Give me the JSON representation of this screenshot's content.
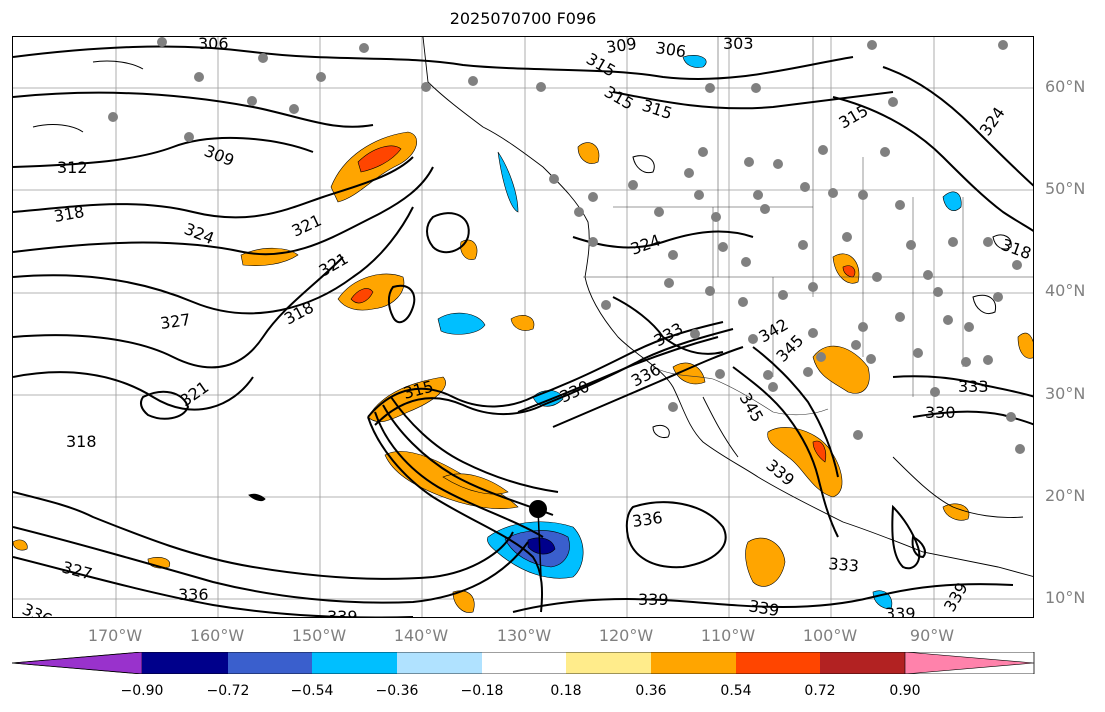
{
  "title": "2025070700 F096",
  "map": {
    "lat_labels": [
      "60°N",
      "50°N",
      "40°N",
      "30°N",
      "20°N",
      "10°N"
    ],
    "lon_labels": [
      "170°W",
      "160°W",
      "150°W",
      "140°W",
      "130°W",
      "120°W",
      "110°W",
      "100°W",
      "90°W"
    ],
    "contour_labels": [
      {
        "text": "306"
      },
      {
        "text": "309"
      },
      {
        "text": "306"
      },
      {
        "text": "303"
      },
      {
        "text": "315"
      },
      {
        "text": "315"
      },
      {
        "text": "315"
      },
      {
        "text": "324"
      },
      {
        "text": "312"
      },
      {
        "text": "309"
      },
      {
        "text": "318"
      },
      {
        "text": "321"
      },
      {
        "text": "324"
      },
      {
        "text": "321"
      },
      {
        "text": "324"
      },
      {
        "text": "318"
      },
      {
        "text": "327"
      },
      {
        "text": "318"
      },
      {
        "text": "321"
      },
      {
        "text": "315"
      },
      {
        "text": "318"
      },
      {
        "text": "330"
      },
      {
        "text": "336"
      },
      {
        "text": "333"
      },
      {
        "text": "342"
      },
      {
        "text": "345"
      },
      {
        "text": "345"
      },
      {
        "text": "339"
      },
      {
        "text": "333"
      },
      {
        "text": "330"
      },
      {
        "text": "336"
      },
      {
        "text": "336"
      },
      {
        "text": "339"
      },
      {
        "text": "339"
      },
      {
        "text": "339"
      },
      {
        "text": "336"
      },
      {
        "text": "327"
      },
      {
        "text": "333"
      },
      {
        "text": "339"
      },
      {
        "text": "339"
      },
      {
        "text": "315"
      }
    ],
    "marker": "storm-center"
  },
  "colorbar": {
    "ticks": [
      "−0.90",
      "−0.72",
      "−0.54",
      "−0.36",
      "−0.18",
      "0.18",
      "0.36",
      "0.54",
      "0.72",
      "0.90"
    ],
    "colors": [
      "#9932cc",
      "#00008b",
      "#3a5fcd",
      "#00bfff",
      "#b0e2ff",
      "#ffffff",
      "#ffec8b",
      "#ffa500",
      "#ff4500",
      "#b22222",
      "#ff82ab"
    ]
  }
}
